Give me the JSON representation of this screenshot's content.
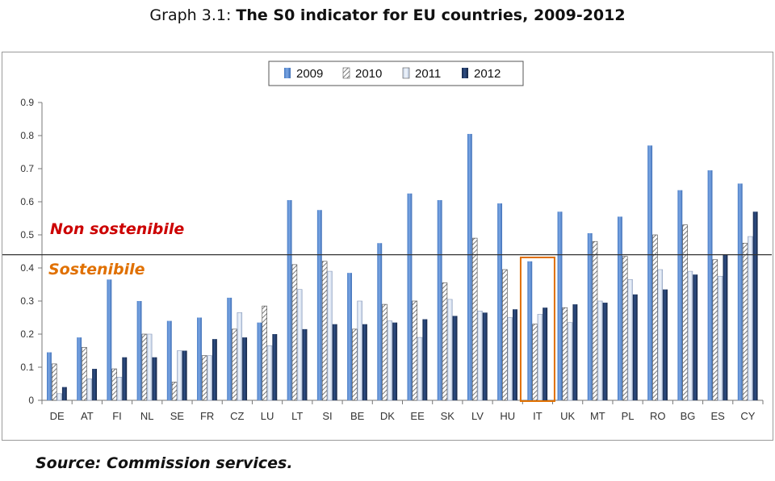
{
  "title": {
    "prefix": "Graph 3.1: ",
    "bold": "The S0 indicator for EU countries, 2009-2012"
  },
  "source": "Source: Commission services.",
  "annotations": {
    "upper": "Non sostenibile",
    "lower": "Sostenibile",
    "threshold": 0.44,
    "highlight_category": "IT",
    "upper_color": "#cc0000",
    "lower_color": "#e07000",
    "box_color": "#e07000"
  },
  "chart_data": {
    "type": "bar",
    "title": "",
    "xlabel": "",
    "ylabel": "",
    "ylim": [
      0,
      0.9
    ],
    "yticks": [
      "0",
      "0.1",
      "0.2",
      "0.3",
      "0.4",
      "0.5",
      "0.6",
      "0.7",
      "0.8",
      "0.9"
    ],
    "legend_position": "top-center",
    "grid": false,
    "categories": [
      "DE",
      "AT",
      "FI",
      "NL",
      "SE",
      "FR",
      "CZ",
      "LU",
      "LT",
      "SI",
      "BE",
      "DK",
      "EE",
      "SK",
      "LV",
      "HU",
      "IT",
      "UK",
      "MT",
      "PL",
      "RO",
      "BG",
      "ES",
      "CY"
    ],
    "series": [
      {
        "name": "2009",
        "color": "#5b8fd6",
        "pattern": "solid",
        "values": [
          0.145,
          0.19,
          0.365,
          0.3,
          0.24,
          0.25,
          0.31,
          0.235,
          0.605,
          0.575,
          0.385,
          0.475,
          0.625,
          0.605,
          0.805,
          0.595,
          0.42,
          0.57,
          0.505,
          0.555,
          0.77,
          0.635,
          0.695,
          0.655
        ]
      },
      {
        "name": "2010",
        "color": "#ffffff",
        "pattern": "hatched",
        "values": [
          0.11,
          0.16,
          0.095,
          0.2,
          0.055,
          0.135,
          0.215,
          0.285,
          0.41,
          0.42,
          0.215,
          0.29,
          0.3,
          0.355,
          0.49,
          0.395,
          0.23,
          0.28,
          0.48,
          0.435,
          0.5,
          0.53,
          0.425,
          0.475
        ]
      },
      {
        "name": "2011",
        "color": "#dfe7f4",
        "pattern": "light",
        "values": [
          0.02,
          0.065,
          0.07,
          0.2,
          0.15,
          0.135,
          0.265,
          0.165,
          0.335,
          0.39,
          0.3,
          0.24,
          0.19,
          0.305,
          0.27,
          0.25,
          0.26,
          0.235,
          0.3,
          0.365,
          0.395,
          0.39,
          0.375,
          0.495
        ]
      },
      {
        "name": "2012",
        "color": "#1f3864",
        "pattern": "solid",
        "values": [
          0.04,
          0.095,
          0.13,
          0.13,
          0.15,
          0.185,
          0.19,
          0.2,
          0.215,
          0.23,
          0.23,
          0.235,
          0.245,
          0.255,
          0.265,
          0.275,
          0.28,
          0.29,
          0.295,
          0.32,
          0.335,
          0.38,
          0.44,
          0.57
        ]
      }
    ]
  }
}
